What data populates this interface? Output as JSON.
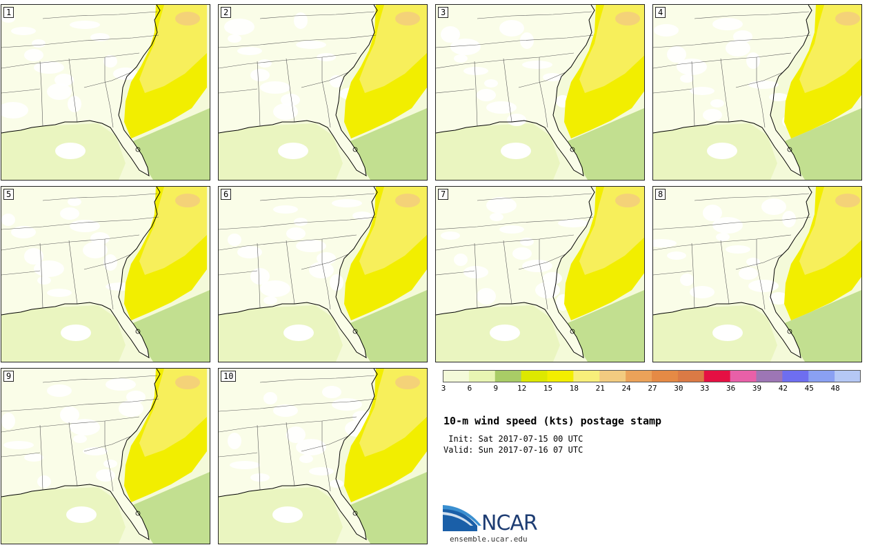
{
  "panels": [
    {
      "label": "1"
    },
    {
      "label": "2"
    },
    {
      "label": "3"
    },
    {
      "label": "4"
    },
    {
      "label": "5"
    },
    {
      "label": "6"
    },
    {
      "label": "7"
    },
    {
      "label": "8"
    },
    {
      "label": "9"
    },
    {
      "label": "10"
    }
  ],
  "colorbar": {
    "ticks": [
      "3",
      "6",
      "9",
      "12",
      "15",
      "18",
      "21",
      "24",
      "27",
      "30",
      "33",
      "36",
      "39",
      "42",
      "45",
      "48"
    ],
    "colors": [
      "#f4fad9",
      "#e8f5b3",
      "#a9cc66",
      "#dde800",
      "#f2ee00",
      "#f8ef7a",
      "#f2cb80",
      "#eba259",
      "#e58a45",
      "#db7a45",
      "#e51043",
      "#e860a8",
      "#9d76b5",
      "#6e6ef0",
      "#8aa0f2",
      "#b5c8f5"
    ]
  },
  "title": "10-m wind speed (kts) postage stamp",
  "init": " Init: Sat 2017-07-15 00 UTC",
  "valid": "Valid: Sun 2017-07-16 07 UTC",
  "logo": {
    "name": "NCAR",
    "url": "ensemble.ucar.edu"
  }
}
